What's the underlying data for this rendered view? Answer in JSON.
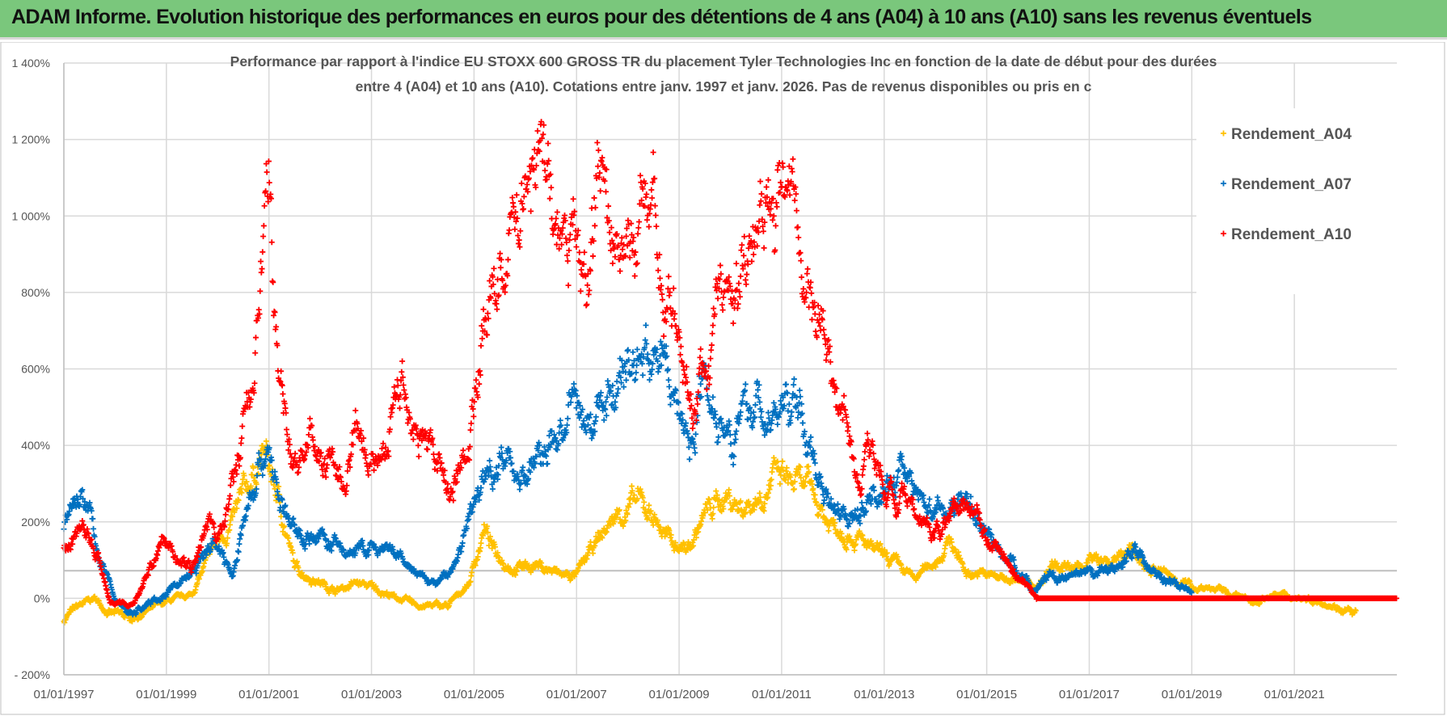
{
  "header": {
    "title": "ADAM Informe. Evolution historique des performances en euros pour des détentions de 4 ans (A04) à 10 ans (A10) sans les revenus éventuels"
  },
  "chart_data": {
    "type": "scatter",
    "title_lines": [
      "Performance par rapport à l'indice EU STOXX 600 GROSS TR  du placement Tyler Technologies Inc en fonction de la date de début pour des durées",
      "entre 4 (A04) et 10 ans (A10). Cotations entre janv. 1997 et janv. 2026. Pas de revenus disponibles ou pris en c"
    ],
    "xlabel": "",
    "ylabel": "",
    "xlim": [
      1997.0,
      2023.0
    ],
    "ylim": [
      -200,
      1400
    ],
    "x_ticks": [
      "01/01/1997",
      "01/01/1999",
      "01/01/2001",
      "01/01/2003",
      "01/01/2005",
      "01/01/2007",
      "01/01/2009",
      "01/01/2011",
      "01/01/2013",
      "01/01/2015",
      "01/01/2017",
      "01/01/2019",
      "01/01/2021"
    ],
    "y_ticks": [
      {
        "value": -200,
        "label": "- 200%"
      },
      {
        "value": 0,
        "label": "0%"
      },
      {
        "value": 200,
        "label": "200%"
      },
      {
        "value": 400,
        "label": "400%"
      },
      {
        "value": 600,
        "label": "600%"
      },
      {
        "value": 800,
        "label": "800%"
      },
      {
        "value": 1000,
        "label": "1 000%"
      },
      {
        "value": 1200,
        "label": "1 200%"
      },
      {
        "value": 1400,
        "label": "1 400%"
      }
    ],
    "reference_line_value": 72,
    "grid": true,
    "legend_position": "top-right",
    "series": [
      {
        "name": "Rendement_A04",
        "color": "#ffc000",
        "points": [
          [
            1997.0,
            -55
          ],
          [
            1997.3,
            -20
          ],
          [
            1997.6,
            0
          ],
          [
            1997.9,
            -40
          ],
          [
            1998.3,
            -50
          ],
          [
            1998.7,
            -30
          ],
          [
            1999.0,
            -10
          ],
          [
            1999.5,
            10
          ],
          [
            1999.9,
            130
          ],
          [
            2000.3,
            200
          ],
          [
            2000.6,
            300
          ],
          [
            2000.9,
            380
          ],
          [
            2001.2,
            250
          ],
          [
            2001.5,
            80
          ],
          [
            2001.9,
            50
          ],
          [
            2002.3,
            20
          ],
          [
            2002.7,
            40
          ],
          [
            2003.0,
            30
          ],
          [
            2003.5,
            0
          ],
          [
            2004.0,
            -20
          ],
          [
            2004.5,
            -20
          ],
          [
            2004.9,
            40
          ],
          [
            2005.2,
            180
          ],
          [
            2005.4,
            120
          ],
          [
            2005.8,
            80
          ],
          [
            2006.2,
            90
          ],
          [
            2006.7,
            60
          ],
          [
            2007.0,
            60
          ],
          [
            2007.4,
            150
          ],
          [
            2007.8,
            220
          ],
          [
            2008.2,
            250
          ],
          [
            2008.5,
            220
          ],
          [
            2008.8,
            150
          ],
          [
            2009.2,
            130
          ],
          [
            2009.5,
            220
          ],
          [
            2009.9,
            270
          ],
          [
            2010.2,
            240
          ],
          [
            2010.5,
            260
          ],
          [
            2010.9,
            320
          ],
          [
            2011.2,
            300
          ],
          [
            2011.6,
            280
          ],
          [
            2011.9,
            200
          ],
          [
            2012.3,
            180
          ],
          [
            2012.7,
            130
          ],
          [
            2013.2,
            90
          ],
          [
            2013.6,
            50
          ],
          [
            2014.0,
            100
          ],
          [
            2014.3,
            150
          ],
          [
            2014.6,
            70
          ],
          [
            2015.0,
            60
          ],
          [
            2015.5,
            50
          ],
          [
            2016.0,
            30
          ],
          [
            2016.3,
            100
          ],
          [
            2016.7,
            70
          ],
          [
            2017.0,
            100
          ],
          [
            2017.4,
            90
          ],
          [
            2017.8,
            120
          ],
          [
            2018.2,
            80
          ],
          [
            2018.7,
            50
          ],
          [
            2019.0,
            30
          ],
          [
            2019.3,
            30
          ],
          [
            2019.8,
            10
          ],
          [
            2020.2,
            -10
          ],
          [
            2020.6,
            10
          ],
          [
            2021.2,
            0
          ],
          [
            2021.6,
            -10
          ],
          [
            2022.0,
            -30
          ],
          [
            2022.2,
            -40
          ]
        ]
      },
      {
        "name": "Rendement_A07",
        "color": "#0070c0",
        "points": [
          [
            1997.0,
            180
          ],
          [
            1997.3,
            280
          ],
          [
            1997.5,
            220
          ],
          [
            1997.7,
            100
          ],
          [
            1998.0,
            0
          ],
          [
            1998.3,
            -40
          ],
          [
            1998.6,
            -20
          ],
          [
            1999.0,
            10
          ],
          [
            1999.3,
            50
          ],
          [
            1999.6,
            80
          ],
          [
            1999.9,
            150
          ],
          [
            2000.1,
            120
          ],
          [
            2000.3,
            50
          ],
          [
            2000.5,
            200
          ],
          [
            2000.8,
            350
          ],
          [
            2001.0,
            400
          ],
          [
            2001.2,
            250
          ],
          [
            2001.5,
            170
          ],
          [
            2002.0,
            160
          ],
          [
            2002.5,
            120
          ],
          [
            2003.0,
            130
          ],
          [
            2003.5,
            110
          ],
          [
            2004.0,
            50
          ],
          [
            2004.3,
            40
          ],
          [
            2004.6,
            80
          ],
          [
            2004.9,
            200
          ],
          [
            2005.1,
            280
          ],
          [
            2005.5,
            380
          ],
          [
            2006.0,
            320
          ],
          [
            2006.5,
            400
          ],
          [
            2007.0,
            500
          ],
          [
            2007.3,
            450
          ],
          [
            2007.6,
            550
          ],
          [
            2008.0,
            600
          ],
          [
            2008.4,
            650
          ],
          [
            2008.7,
            600
          ],
          [
            2009.0,
            500
          ],
          [
            2009.2,
            400
          ],
          [
            2009.5,
            600
          ],
          [
            2009.8,
            480
          ],
          [
            2010.2,
            450
          ],
          [
            2010.5,
            520
          ],
          [
            2010.8,
            450
          ],
          [
            2011.1,
            520
          ],
          [
            2011.4,
            480
          ],
          [
            2011.7,
            320
          ],
          [
            2012.0,
            260
          ],
          [
            2012.5,
            210
          ],
          [
            2012.8,
            300
          ],
          [
            2013.2,
            300
          ],
          [
            2013.5,
            330
          ],
          [
            2013.8,
            240
          ],
          [
            2014.2,
            220
          ],
          [
            2014.5,
            270
          ],
          [
            2014.8,
            220
          ],
          [
            2015.2,
            130
          ],
          [
            2015.6,
            80
          ],
          [
            2015.9,
            20
          ],
          [
            2016.2,
            60
          ],
          [
            2016.6,
            50
          ],
          [
            2017.0,
            60
          ],
          [
            2017.5,
            80
          ],
          [
            2017.9,
            130
          ],
          [
            2018.2,
            80
          ],
          [
            2018.6,
            40
          ],
          [
            2019.0,
            10
          ]
        ]
      },
      {
        "name": "Rendement_A10",
        "color": "#ff0000",
        "points": [
          [
            1997.0,
            120
          ],
          [
            1997.3,
            190
          ],
          [
            1997.6,
            130
          ],
          [
            1997.9,
            0
          ],
          [
            1998.3,
            -20
          ],
          [
            1998.5,
            20
          ],
          [
            1998.9,
            150
          ],
          [
            1999.2,
            120
          ],
          [
            1999.5,
            80
          ],
          [
            1999.8,
            200
          ],
          [
            2000.0,
            150
          ],
          [
            2000.3,
            300
          ],
          [
            2000.6,
            500
          ],
          [
            2000.9,
            900
          ],
          [
            2001.0,
            1050
          ],
          [
            2001.1,
            700
          ],
          [
            2001.3,
            500
          ],
          [
            2001.5,
            350
          ],
          [
            2001.8,
            400
          ],
          [
            2002.2,
            350
          ],
          [
            2002.5,
            300
          ],
          [
            2002.7,
            400
          ],
          [
            2003.0,
            350
          ],
          [
            2003.3,
            420
          ],
          [
            2003.5,
            550
          ],
          [
            2003.6,
            580
          ],
          [
            2003.9,
            420
          ],
          [
            2004.2,
            380
          ],
          [
            2004.5,
            280
          ],
          [
            2004.7,
            350
          ],
          [
            2004.9,
            400
          ],
          [
            2005.1,
            600
          ],
          [
            2005.3,
            800
          ],
          [
            2005.6,
            900
          ],
          [
            2005.9,
            1000
          ],
          [
            2006.0,
            1150
          ],
          [
            2006.2,
            1200
          ],
          [
            2006.5,
            1050
          ],
          [
            2006.7,
            900
          ],
          [
            2007.0,
            900
          ],
          [
            2007.2,
            850
          ],
          [
            2007.4,
            1100
          ],
          [
            2007.6,
            1000
          ],
          [
            2007.9,
            900
          ],
          [
            2008.2,
            950
          ],
          [
            2008.5,
            1050
          ],
          [
            2008.7,
            850
          ],
          [
            2008.9,
            700
          ],
          [
            2009.1,
            580
          ],
          [
            2009.3,
            500
          ],
          [
            2009.6,
            650
          ],
          [
            2009.8,
            800
          ],
          [
            2010.0,
            750
          ],
          [
            2010.3,
            900
          ],
          [
            2010.6,
            1100
          ],
          [
            2010.9,
            1100
          ],
          [
            2011.2,
            1000
          ],
          [
            2011.4,
            850
          ],
          [
            2011.7,
            750
          ],
          [
            2012.0,
            600
          ],
          [
            2012.3,
            450
          ],
          [
            2012.5,
            300
          ],
          [
            2012.8,
            430
          ],
          [
            2013.0,
            300
          ],
          [
            2013.5,
            230
          ],
          [
            2013.9,
            170
          ],
          [
            2014.2,
            200
          ],
          [
            2014.5,
            270
          ],
          [
            2014.8,
            230
          ],
          [
            2015.2,
            130
          ],
          [
            2015.6,
            60
          ],
          [
            2016.0,
            0
          ],
          [
            2023.0,
            0
          ]
        ]
      }
    ]
  }
}
